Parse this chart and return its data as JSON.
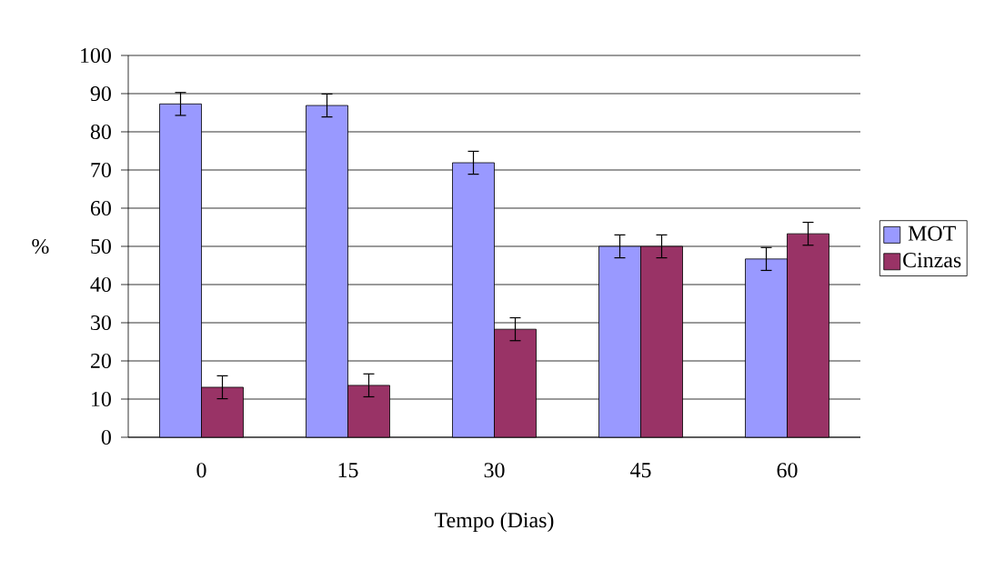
{
  "chart_data": {
    "type": "bar",
    "xlabel": "Tempo (Dias)",
    "ylabel": "%",
    "categories": [
      "0",
      "15",
      "30",
      "45",
      "60"
    ],
    "series": [
      {
        "name": "MOT",
        "color": "#9999ff",
        "values": [
          87.3,
          86.9,
          71.9,
          50.0,
          46.7
        ],
        "errors": [
          3,
          3,
          3,
          3,
          3
        ]
      },
      {
        "name": "Cinzas",
        "color": "#993366",
        "values": [
          13.1,
          13.6,
          28.3,
          50.0,
          53.3
        ],
        "errors": [
          3,
          3,
          3,
          3,
          3
        ]
      }
    ],
    "ylim": [
      0,
      100
    ],
    "yticks": [
      0,
      10,
      20,
      30,
      40,
      50,
      60,
      70,
      80,
      90,
      100
    ],
    "grid": "y",
    "legend": "right"
  }
}
